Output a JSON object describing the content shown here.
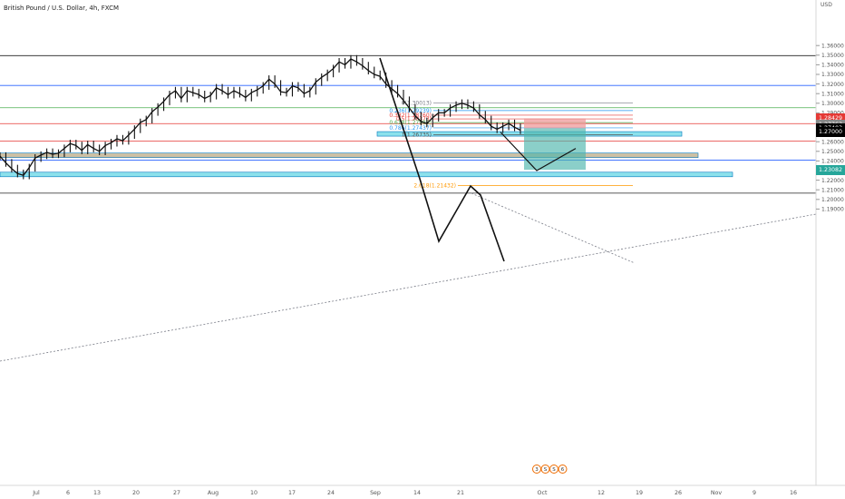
{
  "chart_data": {
    "type": "line",
    "title": "British Pound / U.S. Dollar, 4h, FXCM",
    "symbol": "GBPUSD",
    "timeframe": "4h",
    "source": "FXCM",
    "y_axis": {
      "unit": "USD",
      "ylim": [
        1.186,
        1.37
      ],
      "tick_labels": [
        "1.36000",
        "1.35000",
        "1.34000",
        "1.33000",
        "1.32000",
        "1.31000",
        "1.30000",
        "1.29000",
        "1.28000",
        "1.27000",
        "1.26000",
        "1.25000",
        "1.24000",
        "1.23000",
        "1.22000",
        "1.21000",
        "1.20000",
        "1.19000"
      ]
    },
    "x_axis": {
      "tick_labels": [
        "Jul",
        "6",
        "13",
        "20",
        "27",
        "Aug",
        "10",
        "17",
        "24",
        "Sep",
        "14",
        "21",
        "Oct",
        "12",
        "19",
        "26",
        "Nov",
        "9",
        "16"
      ]
    },
    "grid": false,
    "price_series": {
      "name": "GBPUSD",
      "values": [
        1.245,
        1.238,
        1.232,
        1.227,
        1.225,
        1.233,
        1.243,
        1.246,
        1.249,
        1.247,
        1.248,
        1.253,
        1.258,
        1.256,
        1.251,
        1.257,
        1.253,
        1.25,
        1.256,
        1.259,
        1.263,
        1.261,
        1.267,
        1.273,
        1.28,
        1.283,
        1.291,
        1.296,
        1.302,
        1.309,
        1.313,
        1.305,
        1.313,
        1.311,
        1.309,
        1.305,
        1.308,
        1.316,
        1.313,
        1.309,
        1.313,
        1.31,
        1.306,
        1.311,
        1.314,
        1.318,
        1.325,
        1.32,
        1.312,
        1.311,
        1.318,
        1.316,
        1.31,
        1.313,
        1.322,
        1.327,
        1.331,
        1.336,
        1.343,
        1.34,
        1.346,
        1.343,
        1.339,
        1.334,
        1.33,
        1.328,
        1.32,
        1.315,
        1.31,
        1.303,
        1.295,
        1.287,
        1.281,
        1.279,
        1.285,
        1.29,
        1.29,
        1.295,
        1.298,
        1.3,
        1.298,
        1.295,
        1.288,
        1.283,
        1.276,
        1.273,
        1.276,
        1.279,
        1.275,
        1.272
      ]
    },
    "horizontal_levels": [
      {
        "price": 1.3495,
        "color": "#222222"
      },
      {
        "price": 1.3185,
        "color": "#2962ff"
      },
      {
        "price": 1.2953,
        "color": "#4caf50"
      },
      {
        "price": 1.2788,
        "color": "#e53935"
      },
      {
        "price": 1.2608,
        "color": "#e53935"
      },
      {
        "price": 1.2408,
        "color": "#2962ff"
      },
      {
        "price": 1.2065,
        "color": "#222222"
      }
    ],
    "fibonacci": {
      "levels": [
        {
          "label": "0(1.30013)",
          "price": 1.3001,
          "color": "#787b86"
        },
        {
          "label": "0.236(1.29239)",
          "price": 1.2924,
          "color": "#2196f3"
        },
        {
          "label": "0.382(1.28760)",
          "price": 1.2876,
          "color": "#e53935"
        },
        {
          "label": "0.5(1.28373)",
          "price": 1.2837,
          "color": "#e53935"
        },
        {
          "label": "0.618(1.27986)",
          "price": 1.2799,
          "color": "#4caf50"
        },
        {
          "label": "0.786(1.27437)",
          "price": 1.2744,
          "color": "#2196f3"
        },
        {
          "label": "1(1.26735)",
          "price": 1.2674,
          "color": "#555555"
        },
        {
          "label": "2.618(1.21432)",
          "price": 1.2143,
          "color": "#ff9800"
        }
      ]
    },
    "zones": [
      {
        "from": 1.2685,
        "to": 1.2705,
        "color": "#80deea"
      },
      {
        "from": 1.2462,
        "to": 1.2482,
        "color": "#c8b99a"
      },
      {
        "from": 1.2263,
        "to": 1.2283,
        "color": "#80deea"
      }
    ],
    "position_tool": {
      "entry": 1.274,
      "stop": 1.2843,
      "target": 1.2308,
      "profit_color": "#4db6ac",
      "loss_color": "#ef9a9a"
    },
    "projection_path": [
      1.27,
      1.23,
      1.253
    ],
    "price_labels": [
      {
        "text": "1.28429",
        "color": "#e53935"
      },
      {
        "text": "1.27763",
        "color": "#888888"
      },
      {
        "text": "1.27403",
        "color": "#000000"
      },
      {
        "text": "1.27000",
        "color": "#000000"
      },
      {
        "text": "1.23082",
        "color": "#26a69a"
      }
    ],
    "event_markers": [
      "3",
      "S",
      "S",
      "6"
    ]
  }
}
